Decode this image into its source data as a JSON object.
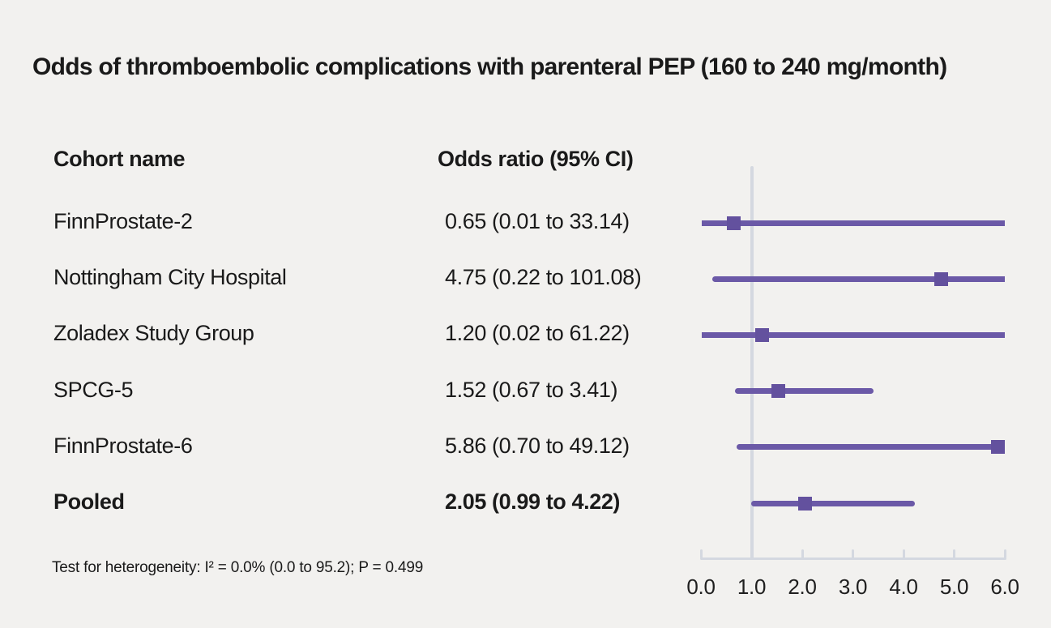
{
  "title": "Odds of thromboembolic complications with parenteral PEP (160 to 240 mg/month)",
  "columns": {
    "cohort": "Cohort name",
    "odds": "Odds ratio (95% CI)"
  },
  "footer": "Test for heterogeneity: I² = 0.0% (0.0 to 95.2); P = 0.499",
  "colors": {
    "background": "#f2f1ef",
    "text": "#1a1a1a",
    "ci_line": "#6b59a7",
    "marker": "#63519e",
    "axis": "#d4d8e0"
  },
  "chart_data": {
    "type": "forest",
    "title": "Odds of thromboembolic complications with parenteral PEP (160 to 240 mg/month)",
    "x_range": [
      0,
      6
    ],
    "x_ticks": [
      "0.0",
      "1.0",
      "2.0",
      "3.0",
      "4.0",
      "5.0",
      "6.0"
    ],
    "x_tick_values": [
      0,
      1,
      2,
      3,
      4,
      5,
      6
    ],
    "reference_value": 1.0,
    "grid": false,
    "rows": [
      {
        "label": "FinnProstate-2",
        "or_text": "0.65 (0.01 to 33.14)",
        "estimate": 0.65,
        "ci_low": 0.01,
        "ci_high": 33.14,
        "bold": false
      },
      {
        "label": "Nottingham City Hospital",
        "or_text": "4.75 (0.22 to 101.08)",
        "estimate": 4.75,
        "ci_low": 0.22,
        "ci_high": 101.08,
        "bold": false
      },
      {
        "label": "Zoladex Study Group",
        "or_text": "1.20 (0.02 to 61.22)",
        "estimate": 1.2,
        "ci_low": 0.02,
        "ci_high": 61.22,
        "bold": false
      },
      {
        "label": "SPCG-5",
        "or_text": "1.52 (0.67 to 3.41)",
        "estimate": 1.52,
        "ci_low": 0.67,
        "ci_high": 3.41,
        "bold": false
      },
      {
        "label": "FinnProstate-6",
        "or_text": "5.86 (0.70 to 49.12)",
        "estimate": 5.86,
        "ci_low": 0.7,
        "ci_high": 49.12,
        "bold": false
      },
      {
        "label": "Pooled",
        "or_text": "2.05 (0.99 to 4.22)",
        "estimate": 2.05,
        "ci_low": 0.99,
        "ci_high": 4.22,
        "bold": true
      }
    ],
    "heterogeneity_note": "Test for heterogeneity: I² = 0.0% (0.0 to 95.2); P = 0.499"
  }
}
